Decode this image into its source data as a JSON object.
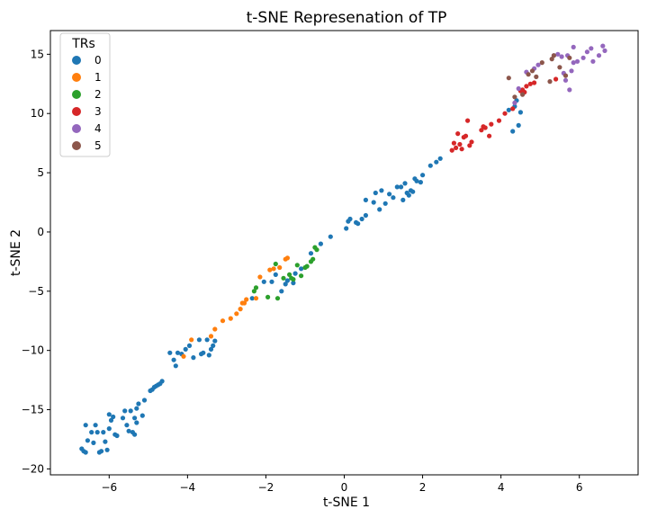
{
  "chart_data": {
    "type": "scatter",
    "title": "t-SNE Represenation of TP",
    "xlabel": "t-SNE 1",
    "ylabel": "t-SNE 2",
    "xlim": [
      -7.5,
      7.5
    ],
    "ylim": [
      -20.5,
      17
    ],
    "xticks": [
      -6,
      -4,
      -2,
      0,
      2,
      4,
      6
    ],
    "yticks": [
      -20,
      -15,
      -10,
      -5,
      0,
      5,
      10,
      15
    ],
    "xtick_labels": [
      "−6",
      "−4",
      "−2",
      "0",
      "2",
      "4",
      "6"
    ],
    "ytick_labels": [
      "−20",
      "−15",
      "−10",
      "−5",
      "0",
      "5",
      "10",
      "15"
    ],
    "grid": false,
    "legend": {
      "title": "TRs",
      "position": "top-left"
    },
    "series": [
      {
        "name": "0",
        "color": "#1f77b4",
        "points": [
          [
            -6.7,
            -18.3
          ],
          [
            -6.65,
            -18.5
          ],
          [
            -6.6,
            -18.6
          ],
          [
            -6.55,
            -17.6
          ],
          [
            -6.6,
            -16.3
          ],
          [
            -6.45,
            -16.9
          ],
          [
            -6.35,
            -16.3
          ],
          [
            -6.4,
            -17.8
          ],
          [
            -6.3,
            -16.9
          ],
          [
            -6.25,
            -18.6
          ],
          [
            -6.2,
            -18.5
          ],
          [
            -6.1,
            -17.7
          ],
          [
            -6.15,
            -16.9
          ],
          [
            -6.05,
            -18.4
          ],
          [
            -6.0,
            -16.6
          ],
          [
            -5.95,
            -15.9
          ],
          [
            -6.0,
            -15.4
          ],
          [
            -5.9,
            -15.6
          ],
          [
            -5.85,
            -17.1
          ],
          [
            -5.8,
            -17.2
          ],
          [
            -5.65,
            -15.7
          ],
          [
            -5.6,
            -15.1
          ],
          [
            -5.55,
            -16.3
          ],
          [
            -5.5,
            -16.8
          ],
          [
            -5.45,
            -15.1
          ],
          [
            -5.4,
            -16.9
          ],
          [
            -5.35,
            -17.1
          ],
          [
            -5.35,
            -15.7
          ],
          [
            -5.3,
            -16.1
          ],
          [
            -5.3,
            -14.9
          ],
          [
            -5.25,
            -14.5
          ],
          [
            -5.15,
            -15.5
          ],
          [
            -5.1,
            -14.2
          ],
          [
            -4.95,
            -13.4
          ],
          [
            -4.9,
            -13.3
          ],
          [
            -4.85,
            -13.1
          ],
          [
            -4.8,
            -13.0
          ],
          [
            -4.75,
            -12.9
          ],
          [
            -4.7,
            -12.8
          ],
          [
            -4.65,
            -12.6
          ],
          [
            -4.45,
            -10.2
          ],
          [
            -4.35,
            -10.8
          ],
          [
            -4.3,
            -11.3
          ],
          [
            -4.25,
            -10.2
          ],
          [
            -4.15,
            -10.3
          ],
          [
            -4.05,
            -9.9
          ],
          [
            -3.95,
            -9.6
          ],
          [
            -3.85,
            -10.6
          ],
          [
            -3.7,
            -9.1
          ],
          [
            -3.65,
            -10.3
          ],
          [
            -3.6,
            -10.2
          ],
          [
            -3.5,
            -9.1
          ],
          [
            -3.45,
            -10.4
          ],
          [
            -3.4,
            -9.9
          ],
          [
            -3.35,
            -9.6
          ],
          [
            -3.3,
            -9.2
          ],
          [
            -2.35,
            -5.6
          ],
          [
            -2.05,
            -4.2
          ],
          [
            -1.85,
            -4.2
          ],
          [
            -1.75,
            -3.6
          ],
          [
            -1.6,
            -5.0
          ],
          [
            -1.5,
            -4.4
          ],
          [
            -1.45,
            -4.1
          ],
          [
            -1.3,
            -4.3
          ],
          [
            -1.25,
            -3.5
          ],
          [
            -1.1,
            -3.1
          ],
          [
            -0.85,
            -1.8
          ],
          [
            -0.6,
            -1.0
          ],
          [
            -0.35,
            -0.4
          ],
          [
            0.05,
            0.3
          ],
          [
            0.1,
            0.9
          ],
          [
            0.15,
            1.1
          ],
          [
            0.3,
            0.8
          ],
          [
            0.35,
            0.7
          ],
          [
            0.45,
            1.1
          ],
          [
            0.55,
            1.4
          ],
          [
            0.55,
            2.7
          ],
          [
            0.75,
            2.5
          ],
          [
            0.8,
            3.3
          ],
          [
            0.9,
            1.9
          ],
          [
            0.95,
            3.5
          ],
          [
            1.05,
            2.4
          ],
          [
            1.15,
            3.2
          ],
          [
            1.25,
            2.9
          ],
          [
            1.35,
            3.8
          ],
          [
            1.45,
            3.8
          ],
          [
            1.5,
            2.7
          ],
          [
            1.55,
            4.1
          ],
          [
            1.6,
            3.3
          ],
          [
            1.65,
            3.1
          ],
          [
            1.7,
            3.5
          ],
          [
            1.75,
            3.4
          ],
          [
            1.8,
            4.5
          ],
          [
            1.85,
            4.3
          ],
          [
            1.95,
            4.2
          ],
          [
            2.0,
            4.8
          ],
          [
            2.2,
            5.6
          ],
          [
            2.35,
            5.9
          ],
          [
            2.45,
            6.2
          ],
          [
            4.2,
            10.3
          ],
          [
            4.3,
            8.5
          ],
          [
            4.35,
            10.6
          ],
          [
            4.4,
            11.1
          ],
          [
            4.45,
            9.0
          ],
          [
            4.5,
            10.1
          ]
        ]
      },
      {
        "name": "1",
        "color": "#ff7f0e",
        "points": [
          [
            -4.1,
            -10.5
          ],
          [
            -3.9,
            -9.1
          ],
          [
            -3.4,
            -8.8
          ],
          [
            -3.3,
            -8.2
          ],
          [
            -3.1,
            -7.5
          ],
          [
            -2.9,
            -7.3
          ],
          [
            -2.75,
            -6.9
          ],
          [
            -2.65,
            -6.5
          ],
          [
            -2.6,
            -6.0
          ],
          [
            -2.55,
            -6.0
          ],
          [
            -2.5,
            -5.7
          ],
          [
            -2.25,
            -5.6
          ],
          [
            -2.15,
            -3.8
          ],
          [
            -1.9,
            -3.2
          ],
          [
            -1.8,
            -3.1
          ],
          [
            -1.65,
            -3.0
          ],
          [
            -1.5,
            -2.3
          ],
          [
            -1.45,
            -2.2
          ]
        ]
      },
      {
        "name": "2",
        "color": "#2ca02c",
        "points": [
          [
            -2.3,
            -5.0
          ],
          [
            -2.25,
            -4.7
          ],
          [
            -1.95,
            -5.5
          ],
          [
            -1.75,
            -2.7
          ],
          [
            -1.7,
            -5.6
          ],
          [
            -1.55,
            -3.9
          ],
          [
            -1.4,
            -3.6
          ],
          [
            -1.35,
            -3.9
          ],
          [
            -1.3,
            -4.0
          ],
          [
            -1.2,
            -2.8
          ],
          [
            -1.1,
            -3.7
          ],
          [
            -1.0,
            -3.0
          ],
          [
            -0.95,
            -2.9
          ],
          [
            -0.85,
            -2.5
          ],
          [
            -0.8,
            -2.3
          ],
          [
            -0.75,
            -1.3
          ],
          [
            -0.7,
            -1.5
          ]
        ]
      },
      {
        "name": "3",
        "color": "#d62728",
        "points": [
          [
            2.75,
            6.9
          ],
          [
            2.8,
            7.5
          ],
          [
            2.85,
            7.1
          ],
          [
            2.9,
            8.3
          ],
          [
            2.95,
            7.4
          ],
          [
            3.0,
            7.0
          ],
          [
            3.05,
            8.0
          ],
          [
            3.1,
            8.1
          ],
          [
            3.15,
            9.4
          ],
          [
            3.2,
            7.3
          ],
          [
            3.25,
            7.6
          ],
          [
            3.5,
            8.6
          ],
          [
            3.55,
            8.9
          ],
          [
            3.6,
            8.8
          ],
          [
            3.7,
            8.1
          ],
          [
            3.75,
            9.1
          ],
          [
            3.95,
            9.4
          ],
          [
            4.1,
            10.0
          ],
          [
            4.3,
            10.4
          ],
          [
            4.5,
            11.9
          ],
          [
            4.55,
            12.0
          ],
          [
            4.6,
            11.8
          ],
          [
            4.65,
            12.3
          ],
          [
            4.75,
            12.5
          ],
          [
            4.85,
            12.6
          ],
          [
            5.4,
            12.9
          ]
        ]
      },
      {
        "name": "4",
        "color": "#9467bd",
        "points": [
          [
            4.35,
            10.9
          ],
          [
            4.45,
            12.1
          ],
          [
            4.65,
            13.5
          ],
          [
            4.85,
            13.8
          ],
          [
            4.95,
            14.1
          ],
          [
            5.35,
            14.9
          ],
          [
            5.45,
            15.0
          ],
          [
            5.55,
            14.8
          ],
          [
            5.6,
            13.4
          ],
          [
            5.65,
            12.8
          ],
          [
            5.7,
            14.9
          ],
          [
            5.75,
            12.0
          ],
          [
            5.8,
            13.6
          ],
          [
            5.85,
            14.3
          ],
          [
            5.85,
            15.6
          ],
          [
            5.95,
            14.4
          ],
          [
            6.1,
            14.7
          ],
          [
            6.2,
            15.2
          ],
          [
            6.3,
            15.5
          ],
          [
            6.35,
            14.4
          ],
          [
            6.5,
            14.9
          ],
          [
            6.6,
            15.7
          ],
          [
            6.65,
            15.3
          ]
        ]
      },
      {
        "name": "5",
        "color": "#8c564b",
        "points": [
          [
            4.2,
            13.0
          ],
          [
            4.35,
            11.4
          ],
          [
            4.55,
            11.6
          ],
          [
            4.7,
            13.3
          ],
          [
            4.8,
            13.6
          ],
          [
            4.9,
            13.1
          ],
          [
            5.05,
            14.3
          ],
          [
            5.25,
            12.7
          ],
          [
            5.3,
            14.6
          ],
          [
            5.35,
            14.9
          ],
          [
            5.5,
            13.9
          ],
          [
            5.65,
            13.2
          ],
          [
            5.75,
            14.7
          ]
        ]
      }
    ]
  }
}
